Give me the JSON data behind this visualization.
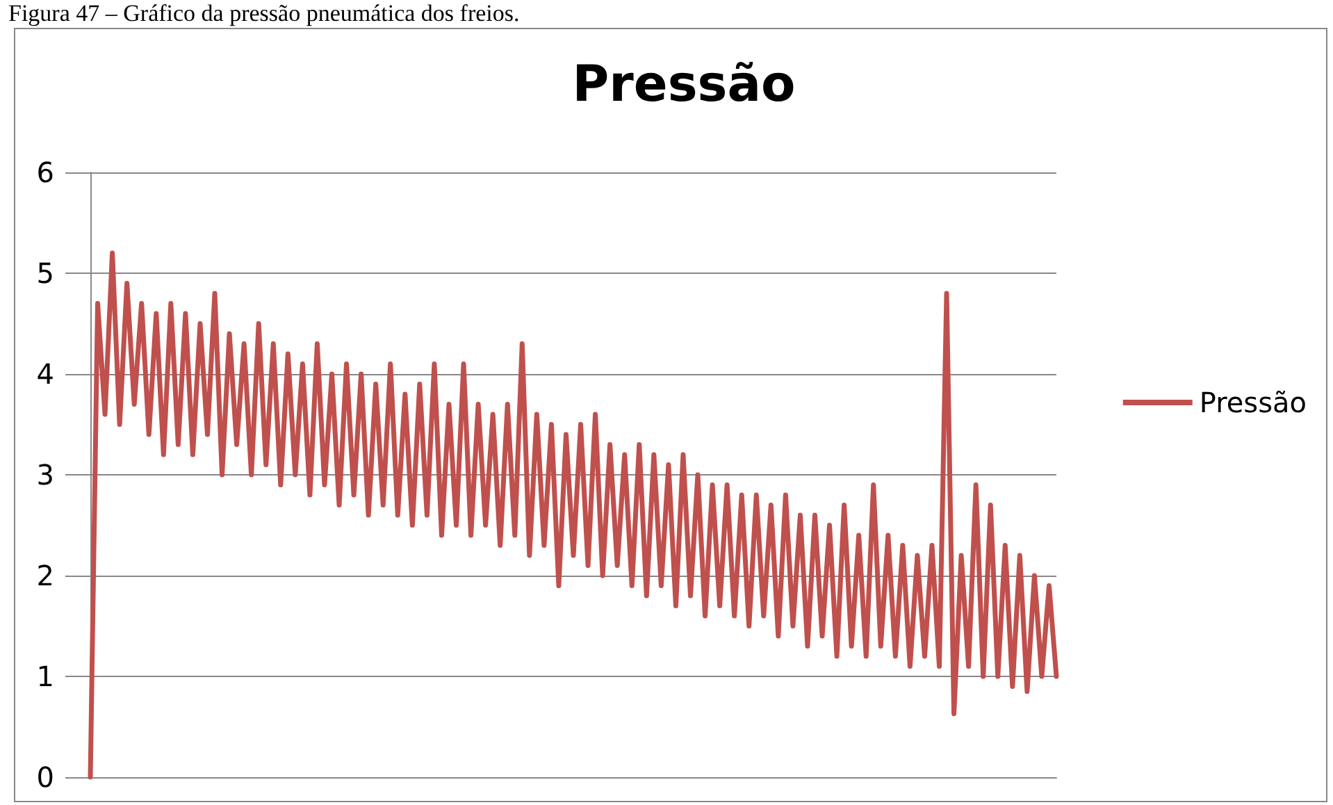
{
  "chart_data": {
    "type": "line",
    "title": "Pressão",
    "annotations": [
      "Figura 47 – Gráfico da pressão pneumática dos freios."
    ],
    "categories": [
      null,
      null,
      null,
      null,
      null,
      null,
      null,
      null,
      null,
      null,
      null,
      null,
      null,
      null,
      null,
      null,
      null,
      null,
      null,
      null,
      null,
      null,
      null,
      null,
      null,
      null,
      null,
      null,
      null,
      null,
      null,
      null,
      null,
      null,
      null,
      null,
      null,
      null,
      null,
      null,
      null,
      null,
      null,
      null,
      null,
      null,
      null,
      null,
      null,
      null,
      null,
      null,
      null,
      null,
      null,
      null,
      null,
      null,
      null,
      null,
      null,
      null,
      null,
      null,
      null,
      null,
      null,
      null,
      null,
      null,
      null,
      null,
      null,
      null,
      null,
      null,
      null,
      null,
      null,
      null,
      null,
      null,
      null,
      null,
      null,
      null,
      null,
      null,
      null,
      null,
      null,
      null,
      null,
      null,
      null,
      null,
      null,
      null,
      null,
      null,
      null,
      null,
      null,
      null,
      null,
      null,
      null,
      null,
      null,
      null,
      null,
      null,
      null,
      null,
      null,
      null,
      null,
      null,
      null,
      null,
      null,
      null,
      null,
      null,
      null,
      null,
      null,
      null,
      null,
      null,
      null,
      null,
      null
    ],
    "series": [
      {
        "name": "Pressão",
        "color": "#c0504d",
        "values": [
          0,
          4.7,
          3.6,
          5.2,
          3.5,
          4.9,
          3.7,
          4.7,
          3.4,
          4.6,
          3.2,
          4.7,
          3.3,
          4.6,
          3.2,
          4.5,
          3.4,
          4.8,
          3.0,
          4.4,
          3.3,
          4.3,
          3.0,
          4.5,
          3.1,
          4.3,
          2.9,
          4.2,
          3.0,
          4.1,
          2.8,
          4.3,
          2.9,
          4.0,
          2.7,
          4.1,
          2.8,
          4.0,
          2.6,
          3.9,
          2.7,
          4.1,
          2.6,
          3.8,
          2.5,
          3.9,
          2.6,
          4.1,
          2.4,
          3.7,
          2.5,
          4.1,
          2.4,
          3.7,
          2.5,
          3.6,
          2.3,
          3.7,
          2.4,
          4.3,
          2.2,
          3.6,
          2.3,
          3.5,
          1.9,
          3.4,
          2.2,
          3.5,
          2.1,
          3.6,
          2.0,
          3.3,
          2.1,
          3.2,
          1.9,
          3.3,
          1.8,
          3.2,
          1.9,
          3.1,
          1.7,
          3.2,
          1.8,
          3.0,
          1.6,
          2.9,
          1.7,
          2.9,
          1.6,
          2.8,
          1.5,
          2.8,
          1.6,
          2.7,
          1.4,
          2.8,
          1.5,
          2.6,
          1.3,
          2.6,
          1.4,
          2.5,
          1.2,
          2.7,
          1.3,
          2.4,
          1.2,
          2.9,
          1.3,
          2.4,
          1.2,
          2.3,
          1.1,
          2.2,
          1.2,
          2.3,
          1.1,
          4.8,
          0.63,
          2.2,
          1.1,
          2.9,
          1.0,
          2.7,
          1.0,
          2.3,
          0.9,
          2.2,
          0.85,
          2.0,
          1.0,
          1.9,
          1.0
        ]
      }
    ],
    "ylim": [
      0,
      6
    ],
    "yticks": [
      0,
      1,
      2,
      3,
      4,
      5,
      6
    ],
    "grid": "y",
    "legend": "right",
    "line_style": "solid",
    "tick_labels": "y"
  }
}
